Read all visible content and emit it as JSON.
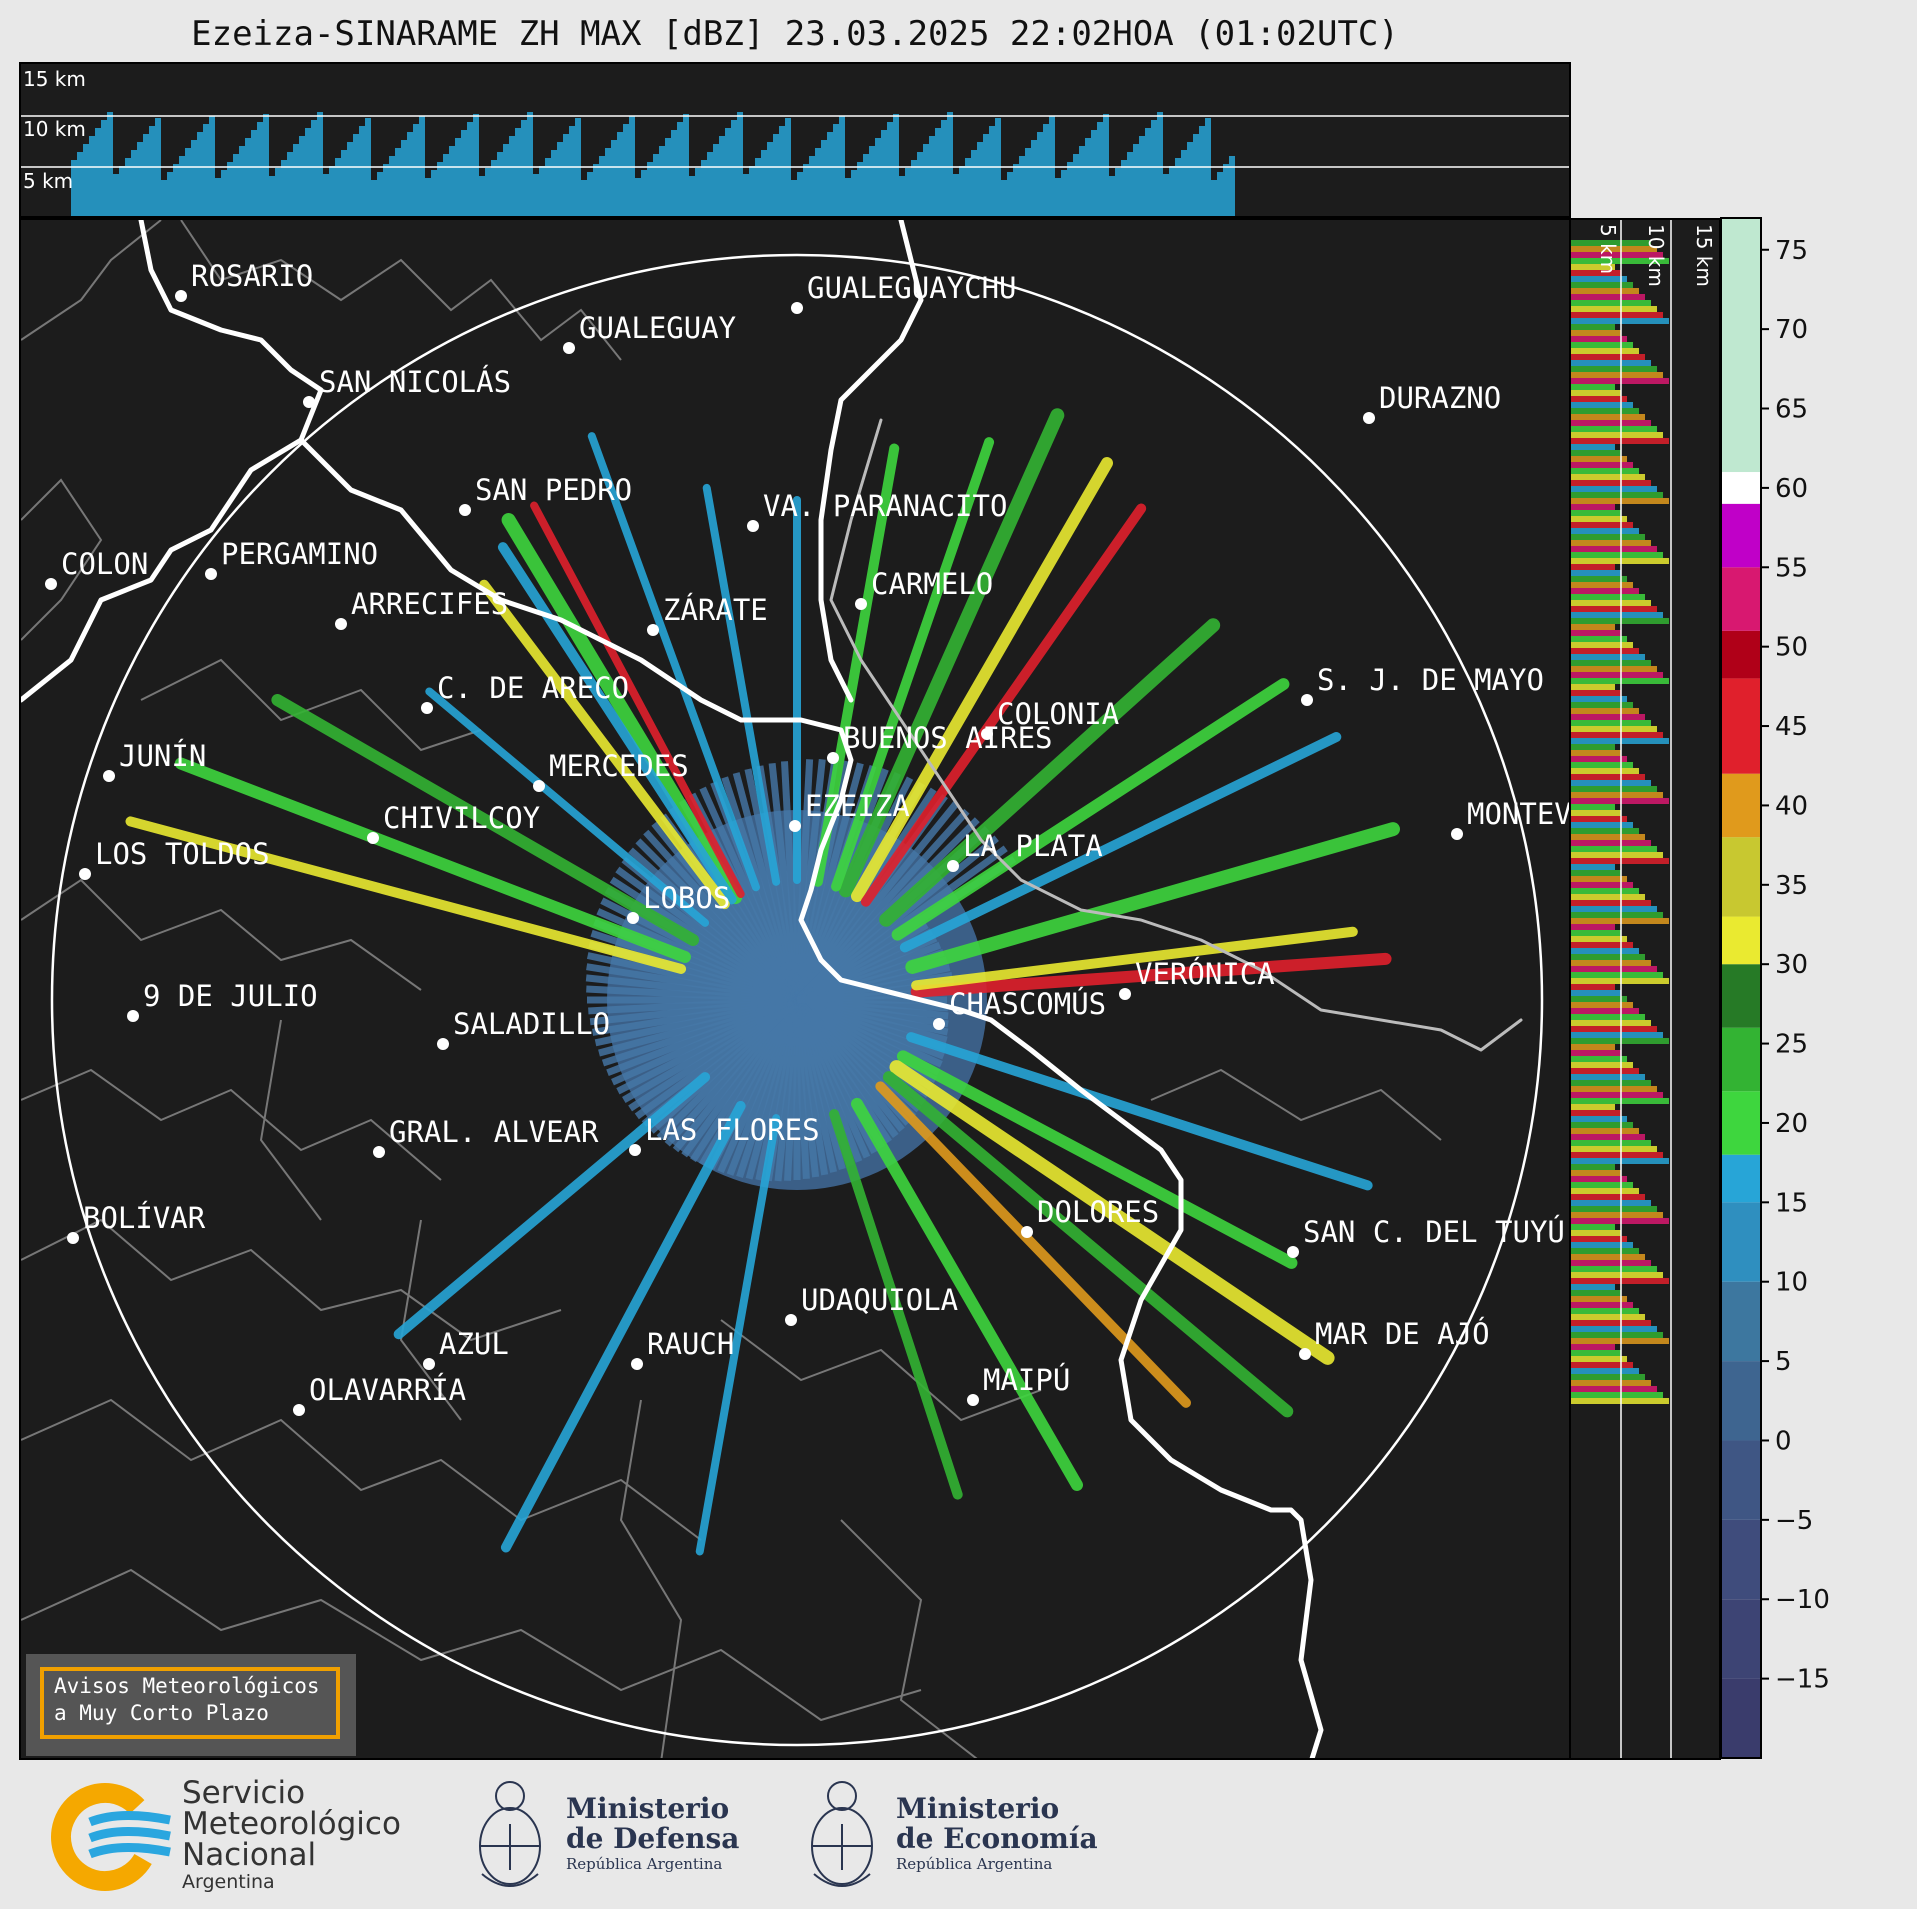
{
  "title": "Ezeiza-SINARAME ZH MAX [dBZ] 23.03.2025 22:02HOA (01:02UTC)",
  "top_panel": {
    "height_labels": [
      "15 km",
      "10 km",
      "5 km"
    ]
  },
  "side_panel": {
    "height_labels": [
      "5 km",
      "10 km",
      "15 km"
    ]
  },
  "colorbar": {
    "ticks": [
      "75",
      "70",
      "65",
      "60",
      "55",
      "50",
      "45",
      "40",
      "35",
      "30",
      "25",
      "20",
      "15",
      "10",
      "5",
      "0",
      "−5",
      "−10",
      "−15"
    ],
    "range_dbz": [
      -20,
      77
    ],
    "bands": [
      {
        "from": -20,
        "to": -15,
        "color": "#3a3c6c"
      },
      {
        "from": -15,
        "to": -10,
        "color": "#3d4474"
      },
      {
        "from": -10,
        "to": -5,
        "color": "#3f4c7c"
      },
      {
        "from": -5,
        "to": 0,
        "color": "#3f5684"
      },
      {
        "from": 0,
        "to": 5,
        "color": "#3e6590"
      },
      {
        "from": 5,
        "to": 10,
        "color": "#3d779f"
      },
      {
        "from": 10,
        "to": 15,
        "color": "#2f8fbf"
      },
      {
        "from": 15,
        "to": 18,
        "color": "#27a5d7"
      },
      {
        "from": 18,
        "to": 22,
        "color": "#3ed63e"
      },
      {
        "from": 22,
        "to": 26,
        "color": "#33b333"
      },
      {
        "from": 26,
        "to": 30,
        "color": "#267a26"
      },
      {
        "from": 30,
        "to": 33,
        "color": "#eaea30"
      },
      {
        "from": 33,
        "to": 38,
        "color": "#c8c830"
      },
      {
        "from": 38,
        "to": 42,
        "color": "#e09a1c"
      },
      {
        "from": 42,
        "to": 48,
        "color": "#e0202c"
      },
      {
        "from": 48,
        "to": 51,
        "color": "#b00018"
      },
      {
        "from": 51,
        "to": 55,
        "color": "#d81870"
      },
      {
        "from": 55,
        "to": 59,
        "color": "#c000c8"
      },
      {
        "from": 59,
        "to": 61,
        "color": "#ffffff"
      },
      {
        "from": 61,
        "to": 77,
        "color": "#bfe8d0"
      }
    ]
  },
  "cities": [
    {
      "name": "ROSARIO"
    },
    {
      "name": "GUALEGUAYCHU"
    },
    {
      "name": "GUALEGUAY"
    },
    {
      "name": "SAN NICOLÁS"
    },
    {
      "name": "DURAZNO"
    },
    {
      "name": "SAN PEDRO"
    },
    {
      "name": "VA. PARANACITO"
    },
    {
      "name": "COLON"
    },
    {
      "name": "PERGAMINO"
    },
    {
      "name": "CARMELO"
    },
    {
      "name": "ARRECIFES"
    },
    {
      "name": "ZÁRATE"
    },
    {
      "name": "S. J. DE MAYO"
    },
    {
      "name": "C. DE ARECO"
    },
    {
      "name": "COLONIA"
    },
    {
      "name": "JUNÍN"
    },
    {
      "name": "BUENOS AIRES"
    },
    {
      "name": "MERCEDES"
    },
    {
      "name": "EZEIZA"
    },
    {
      "name": "MONTEVIDEO"
    },
    {
      "name": "CHIVILCOY"
    },
    {
      "name": "LA PLATA"
    },
    {
      "name": "LOS TOLDOS"
    },
    {
      "name": "LOBOS"
    },
    {
      "name": "VERÓNICA"
    },
    {
      "name": "9 DE JULIO"
    },
    {
      "name": "CHASCOMÚS"
    },
    {
      "name": "SALADILLO"
    },
    {
      "name": "GRAL. ALVEAR"
    },
    {
      "name": "LAS FLORES"
    },
    {
      "name": "BOLÍVAR"
    },
    {
      "name": "DOLORES"
    },
    {
      "name": "SAN C. DEL TUYÚ"
    },
    {
      "name": "UDAQUIOLA"
    },
    {
      "name": "AZUL"
    },
    {
      "name": "RAUCH"
    },
    {
      "name": "MAR DE AJÓ"
    },
    {
      "name": "OLAVARRÍA"
    },
    {
      "name": "MAIPÚ"
    }
  ],
  "alert_box": {
    "line1": "Avisos Meteorológicos",
    "line2": "a Muy Corto Plazo"
  },
  "footer": {
    "smn": {
      "line1": "Servicio",
      "line2": "Meteorológico",
      "line3": "Nacional",
      "line4": "Argentina"
    },
    "defensa": {
      "line1": "Ministerio",
      "line2": "de Defensa",
      "line3": "República Argentina"
    },
    "economia": {
      "line1": "Ministerio",
      "line2": "de Economía",
      "line3": "República Argentina"
    },
    "colors": {
      "smn_orange": "#f5a800",
      "smn_blue": "#2aa6df",
      "ministry_navy": "#2a3550"
    }
  }
}
